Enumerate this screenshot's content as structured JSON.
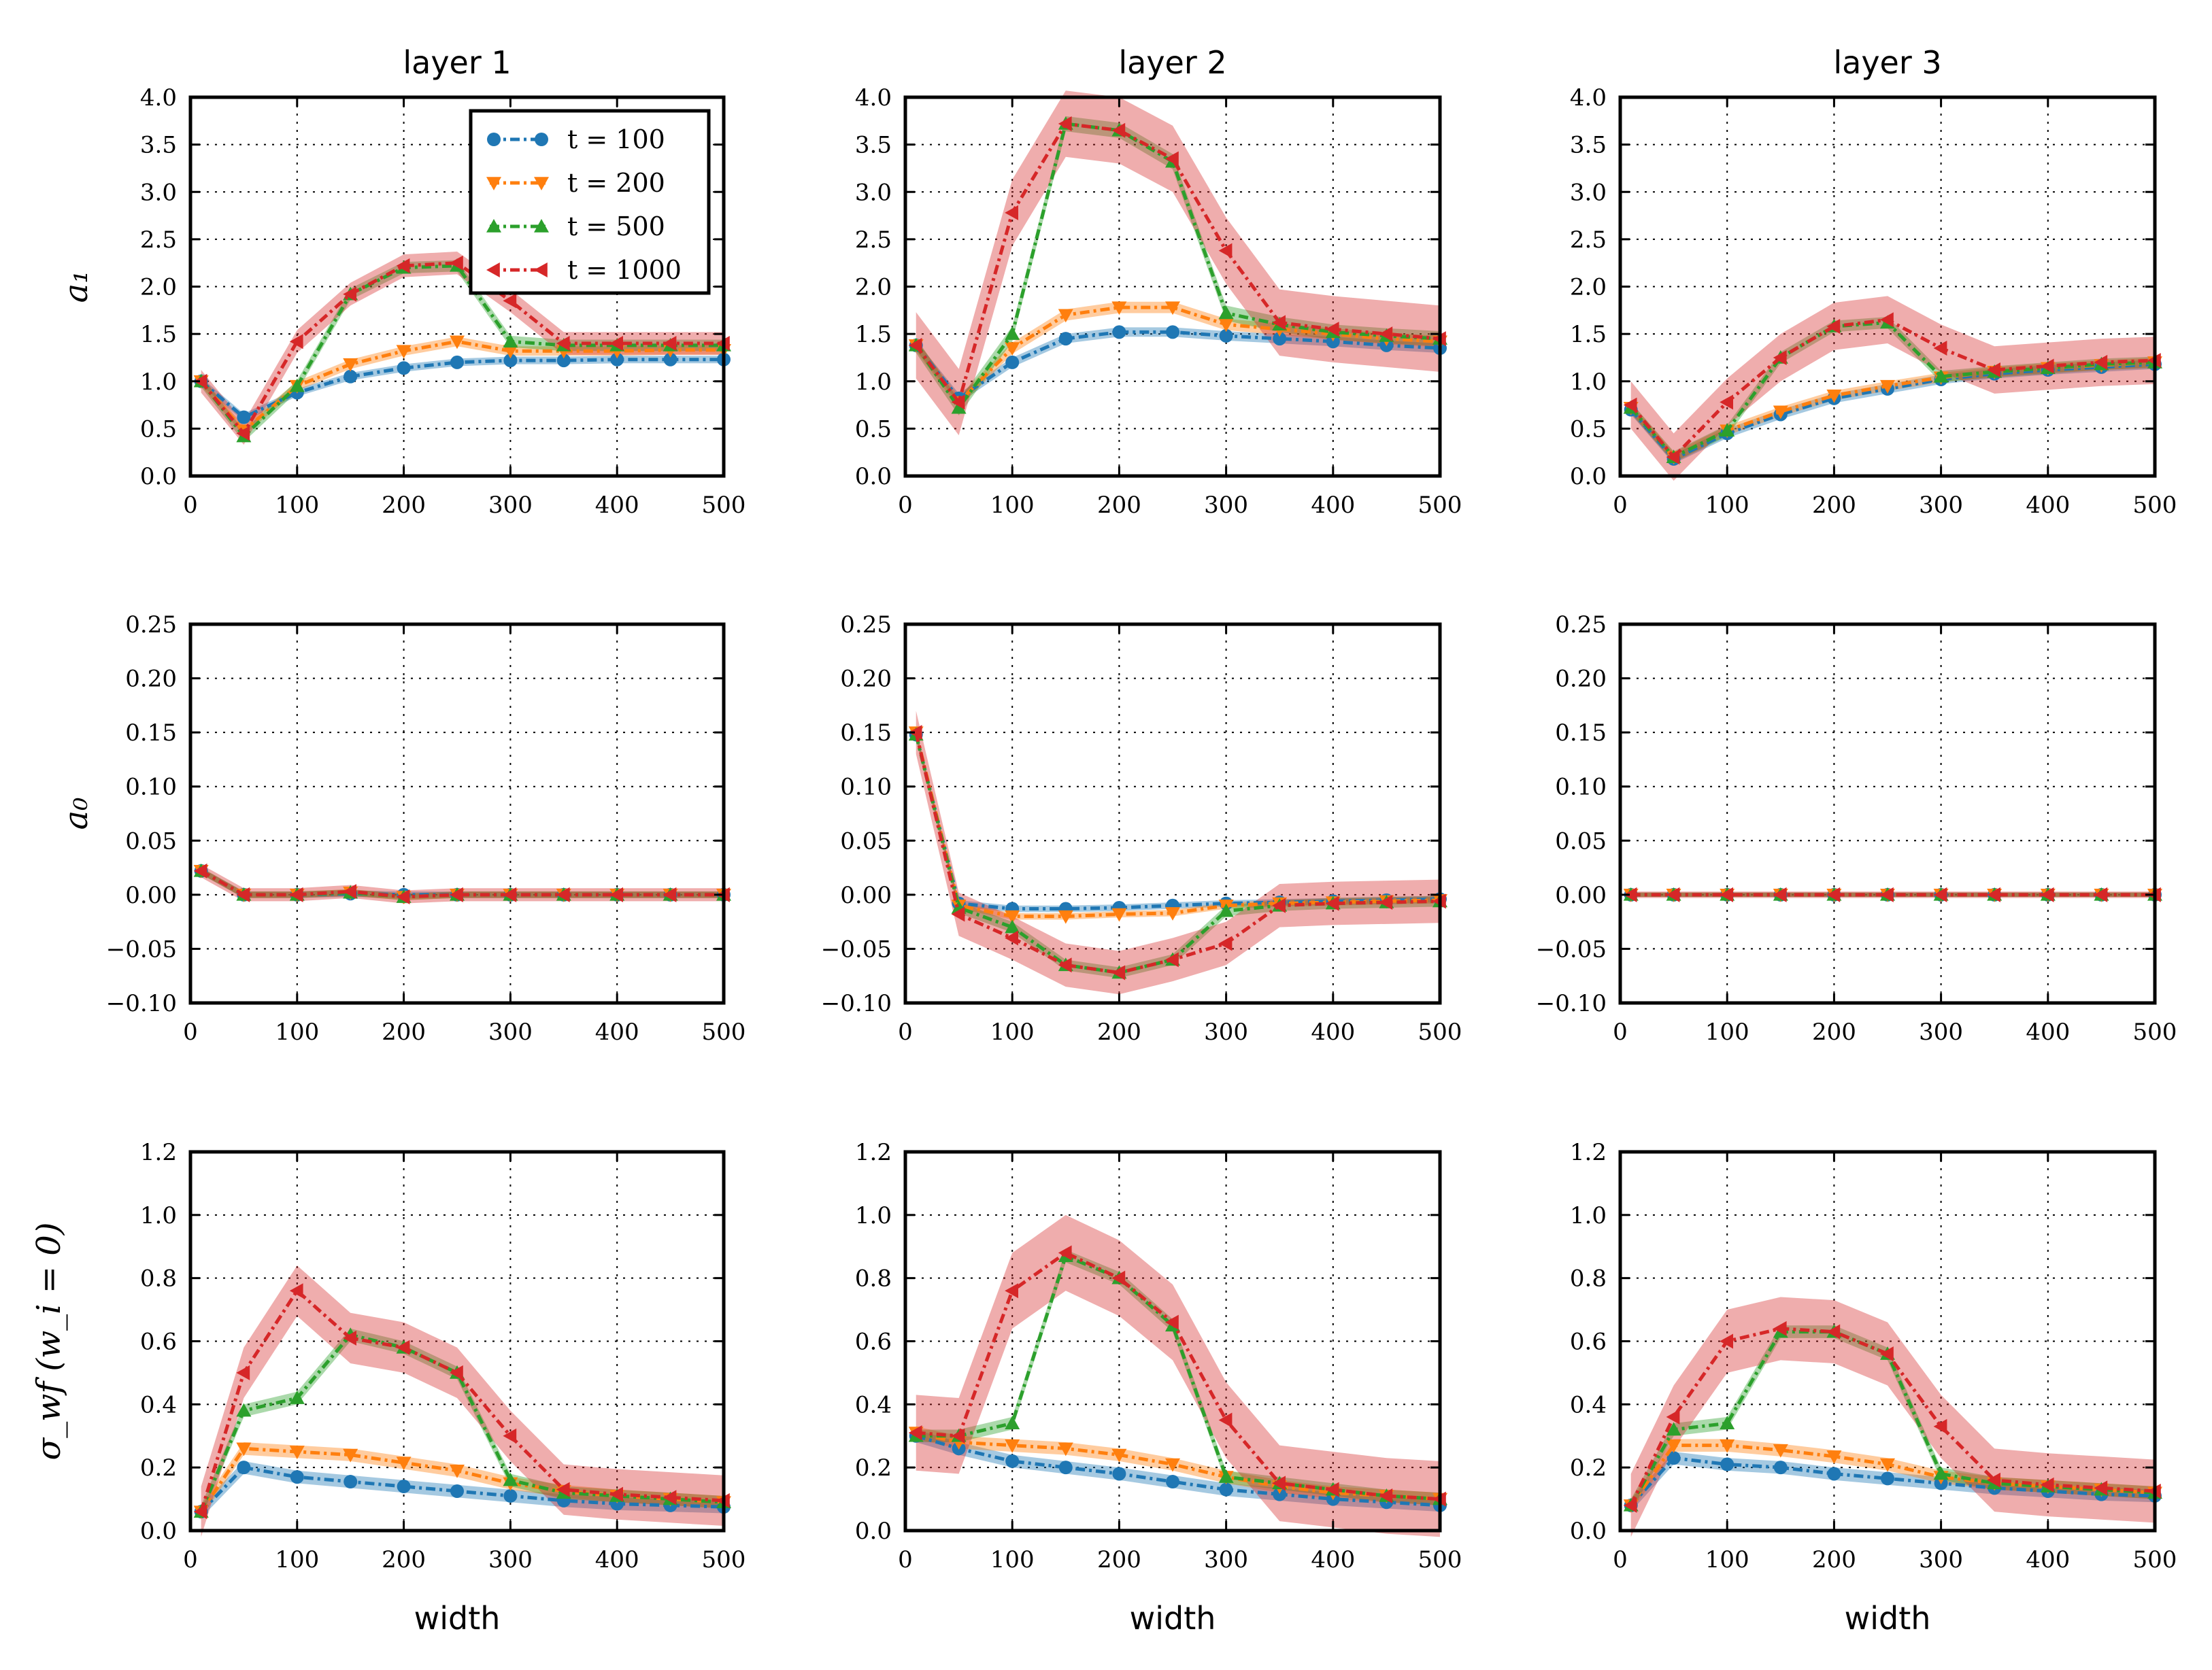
{
  "chart_data": {
    "type": "line",
    "layout": "3x3 grid",
    "columns": [
      "layer 1",
      "layer 2",
      "layer 3"
    ],
    "xlabel": "width",
    "x": [
      10,
      50,
      100,
      150,
      200,
      250,
      300,
      350,
      400,
      450,
      500
    ],
    "xlim": [
      0,
      500
    ],
    "xticks": [
      "0",
      "100",
      "200",
      "300",
      "400",
      "500"
    ],
    "legend": {
      "position": "top-right of first panel",
      "labels": [
        "t = 100",
        "t = 200",
        "t = 500",
        "t = 1000"
      ],
      "colors": [
        "#1f77b4",
        "#ff7f0e",
        "#2ca02c",
        "#d62728"
      ],
      "markers": [
        "circle",
        "triangle-down",
        "triangle-up",
        "triangle-left"
      ]
    },
    "rows": [
      {
        "ylabel": "a₁",
        "ylim": [
          0,
          4
        ],
        "yticks": [
          "0.0",
          "0.5",
          "1.0",
          "1.5",
          "2.0",
          "2.5",
          "3.0",
          "3.5",
          "4.0"
        ],
        "panels": [
          {
            "title": "layer 1",
            "series": [
              {
                "name": "t = 100",
                "values": [
                  1.0,
                  0.62,
                  0.88,
                  1.05,
                  1.14,
                  1.2,
                  1.22,
                  1.22,
                  1.23,
                  1.23,
                  1.23
                ],
                "band": 0.04
              },
              {
                "name": "t = 200",
                "values": [
                  1.0,
                  0.48,
                  0.95,
                  1.18,
                  1.32,
                  1.42,
                  1.32,
                  1.32,
                  1.32,
                  1.33,
                  1.33
                ],
                "band": 0.05
              },
              {
                "name": "t = 500",
                "values": [
                  1.0,
                  0.42,
                  0.95,
                  1.92,
                  2.2,
                  2.22,
                  1.42,
                  1.38,
                  1.38,
                  1.38,
                  1.38
                ],
                "band": 0.06
              },
              {
                "name": "t = 1000",
                "values": [
                  1.0,
                  0.45,
                  1.42,
                  1.92,
                  2.22,
                  2.25,
                  1.85,
                  1.4,
                  1.4,
                  1.4,
                  1.4
                ],
                "band": 0.12
              }
            ]
          },
          {
            "title": "layer 2",
            "series": [
              {
                "name": "t = 100",
                "values": [
                  1.38,
                  0.82,
                  1.2,
                  1.45,
                  1.52,
                  1.52,
                  1.48,
                  1.45,
                  1.42,
                  1.38,
                  1.35
                ],
                "band": 0.05
              },
              {
                "name": "t = 200",
                "values": [
                  1.38,
                  0.78,
                  1.35,
                  1.7,
                  1.78,
                  1.78,
                  1.6,
                  1.55,
                  1.5,
                  1.45,
                  1.42
                ],
                "band": 0.06
              },
              {
                "name": "t = 500",
                "values": [
                  1.38,
                  0.72,
                  1.5,
                  3.72,
                  3.65,
                  3.32,
                  1.72,
                  1.6,
                  1.52,
                  1.48,
                  1.45
                ],
                "band": 0.08
              },
              {
                "name": "t = 1000",
                "values": [
                  1.38,
                  0.78,
                  2.78,
                  3.72,
                  3.65,
                  3.35,
                  2.38,
                  1.62,
                  1.55,
                  1.5,
                  1.45
                ],
                "band": 0.35
              }
            ]
          },
          {
            "title": "layer 3",
            "series": [
              {
                "name": "t = 100",
                "values": [
                  0.7,
                  0.18,
                  0.45,
                  0.65,
                  0.82,
                  0.92,
                  1.02,
                  1.08,
                  1.12,
                  1.15,
                  1.18
                ],
                "band": 0.05
              },
              {
                "name": "t = 200",
                "values": [
                  0.72,
                  0.2,
                  0.48,
                  0.68,
                  0.85,
                  0.95,
                  1.04,
                  1.1,
                  1.14,
                  1.17,
                  1.2
                ],
                "band": 0.05
              },
              {
                "name": "t = 500",
                "values": [
                  0.72,
                  0.2,
                  0.48,
                  1.25,
                  1.58,
                  1.62,
                  1.05,
                  1.1,
                  1.14,
                  1.18,
                  1.2
                ],
                "band": 0.06
              },
              {
                "name": "t = 1000",
                "values": [
                  0.75,
                  0.2,
                  0.78,
                  1.25,
                  1.58,
                  1.65,
                  1.35,
                  1.12,
                  1.16,
                  1.2,
                  1.22
                ],
                "band": 0.25
              }
            ]
          }
        ]
      },
      {
        "ylabel": "a₀",
        "ylim": [
          -0.1,
          0.25
        ],
        "yticks": [
          "−0.10",
          "−0.05",
          "0.00",
          "0.05",
          "0.10",
          "0.15",
          "0.20",
          "0.25"
        ],
        "panels": [
          {
            "title": "layer 1",
            "series": [
              {
                "name": "t = 100",
                "values": [
                  0.022,
                  0.0,
                  0.0,
                  0.001,
                  0.0,
                  0.0,
                  0.0,
                  0.0,
                  0.0,
                  0.0,
                  0.0
                ],
                "band": 0.003
              },
              {
                "name": "t = 200",
                "values": [
                  0.022,
                  0.0,
                  0.0,
                  0.002,
                  -0.002,
                  0.0,
                  0.0,
                  0.0,
                  0.0,
                  0.0,
                  0.0
                ],
                "band": 0.003
              },
              {
                "name": "t = 500",
                "values": [
                  0.022,
                  0.0,
                  0.0,
                  0.002,
                  -0.002,
                  0.0,
                  0.0,
                  0.0,
                  0.0,
                  0.0,
                  0.0
                ],
                "band": 0.003
              },
              {
                "name": "t = 1000",
                "values": [
                  0.022,
                  0.0,
                  0.0,
                  0.003,
                  -0.002,
                  0.0,
                  0.0,
                  0.0,
                  0.0,
                  0.0,
                  0.0
                ],
                "band": 0.006
              }
            ]
          },
          {
            "title": "layer 2",
            "series": [
              {
                "name": "t = 100",
                "values": [
                  0.148,
                  -0.008,
                  -0.013,
                  -0.013,
                  -0.012,
                  -0.01,
                  -0.008,
                  -0.007,
                  -0.006,
                  -0.005,
                  -0.004
                ],
                "band": 0.003
              },
              {
                "name": "t = 200",
                "values": [
                  0.15,
                  -0.01,
                  -0.02,
                  -0.02,
                  -0.018,
                  -0.017,
                  -0.01,
                  -0.008,
                  -0.007,
                  -0.006,
                  -0.005
                ],
                "band": 0.003
              },
              {
                "name": "t = 500",
                "values": [
                  0.148,
                  -0.012,
                  -0.03,
                  -0.065,
                  -0.072,
                  -0.06,
                  -0.015,
                  -0.01,
                  -0.008,
                  -0.007,
                  -0.006
                ],
                "band": 0.005
              },
              {
                "name": "t = 1000",
                "values": [
                  0.15,
                  -0.018,
                  -0.04,
                  -0.065,
                  -0.072,
                  -0.06,
                  -0.045,
                  -0.01,
                  -0.008,
                  -0.007,
                  -0.006
                ],
                "band": 0.02
              }
            ]
          },
          {
            "title": "layer 3",
            "series": [
              {
                "name": "t = 100",
                "values": [
                  0.0,
                  0.0,
                  0.0,
                  0.0,
                  0.0,
                  0.0,
                  0.0,
                  0.0,
                  0.0,
                  0.0,
                  0.0
                ],
                "band": 0.002
              },
              {
                "name": "t = 200",
                "values": [
                  0.0,
                  0.0,
                  0.0,
                  0.0,
                  0.0,
                  0.0,
                  0.0,
                  0.0,
                  0.0,
                  0.0,
                  0.0
                ],
                "band": 0.002
              },
              {
                "name": "t = 500",
                "values": [
                  0.0,
                  0.0,
                  0.0,
                  0.0,
                  0.0,
                  0.0,
                  0.0,
                  0.0,
                  0.0,
                  0.0,
                  0.0
                ],
                "band": 0.002
              },
              {
                "name": "t = 1000",
                "values": [
                  0.0,
                  0.0,
                  0.0,
                  0.0,
                  0.0,
                  0.0,
                  0.0,
                  0.0,
                  0.0,
                  0.0,
                  0.0
                ],
                "band": 0.003
              }
            ]
          }
        ]
      },
      {
        "ylabel": "σ_wf (w_i = 0)",
        "ylim": [
          0,
          1.2
        ],
        "yticks": [
          "0.0",
          "0.2",
          "0.4",
          "0.6",
          "0.8",
          "1.0",
          "1.2"
        ],
        "panels": [
          {
            "title": "layer 1",
            "series": [
              {
                "name": "t = 100",
                "values": [
                  0.06,
                  0.2,
                  0.17,
                  0.155,
                  0.14,
                  0.125,
                  0.11,
                  0.095,
                  0.085,
                  0.08,
                  0.075
                ],
                "band": 0.02
              },
              {
                "name": "t = 200",
                "values": [
                  0.06,
                  0.26,
                  0.25,
                  0.24,
                  0.215,
                  0.19,
                  0.15,
                  0.125,
                  0.11,
                  0.1,
                  0.09
                ],
                "band": 0.02
              },
              {
                "name": "t = 500",
                "values": [
                  0.06,
                  0.38,
                  0.42,
                  0.62,
                  0.58,
                  0.5,
                  0.16,
                  0.12,
                  0.11,
                  0.1,
                  0.09
                ],
                "band": 0.02
              },
              {
                "name": "t = 1000",
                "values": [
                  0.06,
                  0.5,
                  0.76,
                  0.61,
                  0.58,
                  0.5,
                  0.3,
                  0.13,
                  0.115,
                  0.105,
                  0.095
                ],
                "band": 0.08
              }
            ]
          },
          {
            "title": "layer 2",
            "series": [
              {
                "name": "t = 100",
                "values": [
                  0.3,
                  0.26,
                  0.22,
                  0.2,
                  0.18,
                  0.155,
                  0.13,
                  0.115,
                  0.1,
                  0.09,
                  0.08
                ],
                "band": 0.02
              },
              {
                "name": "t = 200",
                "values": [
                  0.31,
                  0.28,
                  0.27,
                  0.26,
                  0.24,
                  0.21,
                  0.17,
                  0.14,
                  0.12,
                  0.11,
                  0.1
                ],
                "band": 0.02
              },
              {
                "name": "t = 500",
                "values": [
                  0.3,
                  0.3,
                  0.34,
                  0.87,
                  0.8,
                  0.65,
                  0.17,
                  0.15,
                  0.13,
                  0.11,
                  0.1
                ],
                "band": 0.02
              },
              {
                "name": "t = 1000",
                "values": [
                  0.31,
                  0.3,
                  0.76,
                  0.88,
                  0.8,
                  0.66,
                  0.35,
                  0.15,
                  0.13,
                  0.11,
                  0.1
                ],
                "band": 0.12
              }
            ]
          },
          {
            "title": "layer 3",
            "series": [
              {
                "name": "t = 100",
                "values": [
                  0.08,
                  0.23,
                  0.21,
                  0.2,
                  0.18,
                  0.165,
                  0.15,
                  0.135,
                  0.125,
                  0.115,
                  0.11
                ],
                "band": 0.02
              },
              {
                "name": "t = 200",
                "values": [
                  0.08,
                  0.27,
                  0.27,
                  0.255,
                  0.235,
                  0.21,
                  0.17,
                  0.15,
                  0.14,
                  0.13,
                  0.12
                ],
                "band": 0.02
              },
              {
                "name": "t = 500",
                "values": [
                  0.08,
                  0.32,
                  0.34,
                  0.63,
                  0.63,
                  0.56,
                  0.18,
                  0.15,
                  0.14,
                  0.13,
                  0.12
                ],
                "band": 0.02
              },
              {
                "name": "t = 1000",
                "values": [
                  0.08,
                  0.36,
                  0.6,
                  0.64,
                  0.63,
                  0.56,
                  0.33,
                  0.16,
                  0.145,
                  0.135,
                  0.125
                ],
                "band": 0.1
              }
            ]
          }
        ]
      }
    ]
  }
}
